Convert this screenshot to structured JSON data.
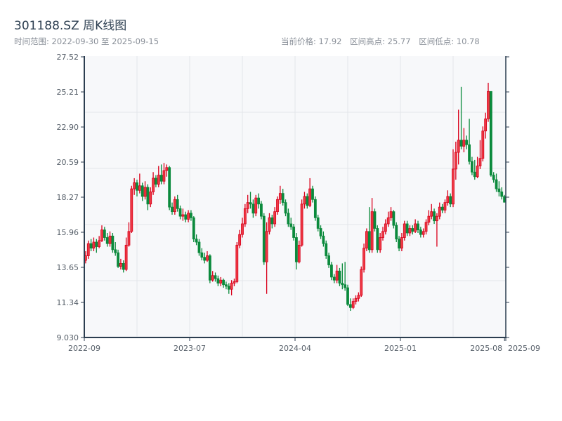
{
  "header": {
    "title": "301188.SZ 周K线图",
    "range_label": "时间范围: 2022-09-30 至 2025-09-15",
    "current_price": "当前价格: 17.92",
    "range_high": "区间高点: 25.77",
    "range_low": "区间低点: 10.78"
  },
  "colors": {
    "up": "#d9001b",
    "up_fill": "#ee3a45",
    "down": "#0b8a3c",
    "plot_bg": "#f7f8fa",
    "axis": "#2c3e50",
    "grid": "#e3e6ea"
  },
  "chart_data": {
    "type": "candlestick",
    "title": "301188.SZ 周K线图",
    "period": "weekly",
    "start": "2022-09-30",
    "end": "2025-09-15",
    "ylim": [
      9.03,
      27.52
    ],
    "y_ticks": [
      "27.52",
      "25.21",
      "22.90",
      "20.59",
      "18.27",
      "15.96",
      "13.65",
      "11.34",
      "9.030"
    ],
    "x_ticks": [
      "2022-09",
      "2023-07",
      "2024-04",
      "2025-01",
      "2025-08",
      "2025-09"
    ],
    "grid": true,
    "candle_fields": [
      "open",
      "high",
      "low",
      "close"
    ],
    "candles": [
      [
        14.1,
        14.7,
        13.9,
        14.4
      ],
      [
        14.4,
        15.4,
        14.2,
        15.2
      ],
      [
        15.2,
        15.5,
        14.7,
        14.9
      ],
      [
        14.9,
        15.6,
        14.7,
        15.3
      ],
      [
        15.3,
        15.5,
        14.6,
        15.0
      ],
      [
        15.0,
        15.7,
        14.9,
        15.4
      ],
      [
        15.4,
        16.4,
        15.3,
        16.1
      ],
      [
        16.1,
        16.3,
        15.4,
        15.6
      ],
      [
        15.6,
        15.9,
        15.0,
        15.2
      ],
      [
        15.2,
        16.0,
        15.0,
        15.7
      ],
      [
        15.7,
        15.9,
        14.6,
        14.8
      ],
      [
        14.8,
        15.3,
        14.4,
        14.6
      ],
      [
        14.6,
        14.8,
        13.6,
        13.7
      ],
      [
        13.7,
        14.2,
        13.5,
        13.9
      ],
      [
        13.9,
        14.1,
        13.3,
        13.5
      ],
      [
        13.5,
        15.6,
        13.4,
        15.1
      ],
      [
        15.1,
        16.6,
        15.0,
        16.0
      ],
      [
        16.0,
        19.0,
        15.9,
        18.8
      ],
      [
        18.8,
        19.5,
        18.4,
        19.2
      ],
      [
        19.2,
        19.4,
        18.3,
        18.7
      ],
      [
        18.7,
        19.8,
        18.5,
        19.0
      ],
      [
        19.0,
        19.2,
        18.0,
        18.3
      ],
      [
        18.3,
        19.3,
        18.1,
        18.9
      ],
      [
        18.9,
        19.1,
        17.4,
        17.8
      ],
      [
        17.8,
        18.9,
        17.6,
        18.6
      ],
      [
        18.6,
        19.9,
        18.4,
        19.5
      ],
      [
        19.5,
        19.7,
        18.9,
        19.1
      ],
      [
        19.1,
        20.3,
        18.9,
        19.7
      ],
      [
        19.7,
        20.4,
        19.1,
        19.3
      ],
      [
        19.3,
        20.5,
        19.1,
        20.0
      ],
      [
        20.0,
        20.4,
        19.6,
        20.2
      ],
      [
        20.2,
        20.3,
        17.4,
        17.6
      ],
      [
        17.6,
        17.9,
        17.1,
        17.3
      ],
      [
        17.3,
        18.3,
        17.1,
        18.1
      ],
      [
        18.1,
        18.4,
        17.3,
        17.5
      ],
      [
        17.5,
        17.7,
        16.8,
        17.0
      ],
      [
        17.0,
        17.5,
        16.7,
        17.1
      ],
      [
        17.1,
        17.3,
        16.6,
        16.8
      ],
      [
        16.8,
        17.4,
        16.6,
        17.2
      ],
      [
        17.2,
        17.4,
        16.7,
        16.9
      ],
      [
        16.9,
        17.0,
        15.3,
        15.5
      ],
      [
        15.5,
        15.8,
        15.1,
        15.3
      ],
      [
        15.3,
        15.5,
        14.4,
        14.6
      ],
      [
        14.6,
        14.9,
        14.1,
        14.3
      ],
      [
        14.3,
        14.6,
        13.9,
        14.1
      ],
      [
        14.1,
        14.7,
        14.0,
        14.4
      ],
      [
        14.4,
        14.5,
        12.6,
        12.8
      ],
      [
        12.8,
        13.4,
        12.7,
        13.1
      ],
      [
        13.1,
        13.3,
        12.7,
        12.9
      ],
      [
        12.9,
        13.1,
        12.4,
        12.6
      ],
      [
        12.6,
        13.0,
        12.4,
        12.8
      ],
      [
        12.8,
        12.9,
        12.3,
        12.5
      ],
      [
        12.5,
        12.7,
        12.2,
        12.4
      ],
      [
        12.4,
        12.6,
        11.9,
        12.2
      ],
      [
        12.2,
        12.8,
        11.8,
        12.6
      ],
      [
        12.6,
        12.9,
        12.4,
        12.7
      ],
      [
        12.7,
        15.3,
        12.6,
        15.1
      ],
      [
        15.1,
        16.1,
        14.9,
        15.8
      ],
      [
        15.8,
        16.9,
        15.6,
        16.5
      ],
      [
        16.5,
        17.8,
        16.3,
        17.5
      ],
      [
        17.5,
        18.4,
        17.2,
        17.9
      ],
      [
        17.9,
        18.6,
        17.5,
        17.8
      ],
      [
        17.8,
        18.1,
        16.9,
        17.2
      ],
      [
        17.2,
        18.4,
        17.0,
        18.2
      ],
      [
        18.2,
        18.5,
        17.5,
        17.8
      ],
      [
        17.8,
        18.0,
        16.8,
        17.0
      ],
      [
        17.0,
        17.2,
        13.8,
        14.0
      ],
      [
        14.0,
        16.6,
        11.9,
        16.0
      ],
      [
        16.0,
        17.2,
        15.8,
        16.9
      ],
      [
        16.9,
        17.1,
        16.2,
        16.5
      ],
      [
        16.5,
        17.6,
        16.3,
        17.3
      ],
      [
        17.3,
        18.3,
        17.1,
        18.1
      ],
      [
        18.1,
        19.0,
        17.8,
        18.5
      ],
      [
        18.5,
        18.8,
        17.7,
        17.9
      ],
      [
        17.9,
        18.1,
        17.0,
        17.2
      ],
      [
        17.2,
        17.5,
        16.3,
        16.5
      ],
      [
        16.5,
        16.9,
        16.1,
        16.3
      ],
      [
        16.3,
        16.5,
        15.4,
        15.6
      ],
      [
        15.6,
        15.9,
        13.5,
        14.0
      ],
      [
        14.0,
        15.4,
        13.9,
        15.1
      ],
      [
        15.1,
        18.1,
        15.0,
        17.8
      ],
      [
        17.8,
        18.6,
        17.5,
        18.3
      ],
      [
        18.3,
        18.5,
        17.5,
        17.7
      ],
      [
        17.7,
        19.5,
        17.6,
        18.8
      ],
      [
        18.8,
        19.0,
        17.9,
        18.1
      ],
      [
        18.1,
        18.3,
        16.7,
        16.9
      ],
      [
        16.9,
        17.1,
        16.0,
        16.2
      ],
      [
        16.2,
        16.4,
        15.5,
        15.7
      ],
      [
        15.7,
        16.0,
        15.0,
        15.2
      ],
      [
        15.2,
        15.4,
        14.2,
        14.4
      ],
      [
        14.4,
        14.6,
        13.6,
        13.8
      ],
      [
        13.8,
        14.0,
        12.8,
        13.0
      ],
      [
        13.0,
        13.2,
        12.6,
        12.8
      ],
      [
        12.8,
        13.8,
        12.6,
        13.4
      ],
      [
        13.4,
        13.6,
        12.4,
        12.6
      ],
      [
        12.6,
        13.9,
        12.2,
        12.5
      ],
      [
        12.5,
        14.0,
        12.1,
        12.3
      ],
      [
        12.3,
        12.5,
        11.1,
        11.2
      ],
      [
        11.2,
        11.6,
        10.78,
        11.0
      ],
      [
        11.0,
        11.6,
        10.9,
        11.4
      ],
      [
        11.4,
        11.8,
        11.2,
        11.6
      ],
      [
        11.6,
        12.0,
        11.4,
        11.8
      ],
      [
        11.8,
        13.7,
        11.7,
        13.5
      ],
      [
        13.5,
        15.2,
        13.3,
        14.9
      ],
      [
        14.9,
        16.2,
        14.7,
        16.0
      ],
      [
        16.0,
        17.6,
        14.6,
        14.8
      ],
      [
        14.8,
        18.2,
        14.6,
        17.3
      ],
      [
        17.3,
        17.5,
        16.0,
        16.2
      ],
      [
        16.2,
        16.4,
        14.6,
        14.8
      ],
      [
        14.8,
        15.9,
        14.6,
        15.6
      ],
      [
        15.6,
        16.3,
        15.4,
        16.0
      ],
      [
        16.0,
        16.8,
        15.8,
        16.5
      ],
      [
        16.5,
        17.3,
        16.3,
        16.9
      ],
      [
        16.9,
        17.6,
        16.7,
        17.3
      ],
      [
        17.3,
        17.4,
        16.2,
        16.4
      ],
      [
        16.4,
        16.6,
        15.3,
        15.5
      ],
      [
        15.5,
        15.7,
        14.7,
        14.9
      ],
      [
        14.9,
        15.9,
        14.7,
        15.6
      ],
      [
        15.6,
        16.7,
        15.4,
        16.5
      ],
      [
        16.5,
        16.7,
        15.7,
        15.9
      ],
      [
        15.9,
        16.4,
        15.7,
        16.2
      ],
      [
        16.2,
        16.4,
        15.8,
        16.0
      ],
      [
        16.0,
        16.8,
        15.9,
        16.5
      ],
      [
        16.5,
        16.7,
        15.9,
        16.1
      ],
      [
        16.1,
        16.3,
        15.6,
        15.8
      ],
      [
        15.8,
        16.2,
        15.6,
        16.0
      ],
      [
        16.0,
        16.8,
        15.8,
        16.6
      ],
      [
        16.6,
        17.4,
        16.4,
        17.0
      ],
      [
        17.0,
        17.8,
        16.8,
        17.3
      ],
      [
        17.3,
        17.5,
        16.5,
        16.7
      ],
      [
        16.7,
        17.2,
        15.0,
        17.0
      ],
      [
        17.0,
        17.9,
        16.8,
        17.6
      ],
      [
        17.6,
        17.8,
        17.2,
        17.4
      ],
      [
        17.4,
        18.1,
        17.2,
        17.9
      ],
      [
        17.9,
        18.7,
        17.7,
        18.3
      ],
      [
        18.3,
        18.5,
        17.6,
        17.8
      ],
      [
        17.8,
        21.4,
        17.6,
        20.1
      ],
      [
        20.1,
        21.9,
        19.4,
        21.2
      ],
      [
        21.2,
        24.0,
        20.4,
        22.0
      ],
      [
        22.0,
        25.5,
        21.4,
        21.6
      ],
      [
        21.6,
        22.8,
        21.2,
        22.0
      ],
      [
        22.0,
        22.3,
        21.4,
        21.7
      ],
      [
        21.7,
        23.4,
        20.4,
        20.6
      ],
      [
        20.6,
        20.9,
        19.7,
        19.9
      ],
      [
        19.9,
        20.7,
        19.4,
        19.6
      ],
      [
        19.6,
        20.9,
        19.5,
        20.3
      ],
      [
        20.3,
        22.0,
        20.1,
        20.8
      ],
      [
        20.8,
        22.9,
        20.6,
        22.6
      ],
      [
        22.6,
        23.8,
        22.1,
        23.4
      ],
      [
        23.4,
        25.77,
        23.2,
        25.2
      ],
      [
        25.2,
        25.2,
        19.6,
        19.7
      ],
      [
        19.7,
        19.9,
        19.2,
        19.4
      ],
      [
        19.4,
        19.8,
        18.6,
        18.8
      ],
      [
        18.8,
        19.3,
        18.3,
        18.6
      ],
      [
        18.6,
        18.9,
        18.1,
        18.3
      ],
      [
        18.3,
        18.4,
        17.9,
        17.92
      ]
    ]
  }
}
